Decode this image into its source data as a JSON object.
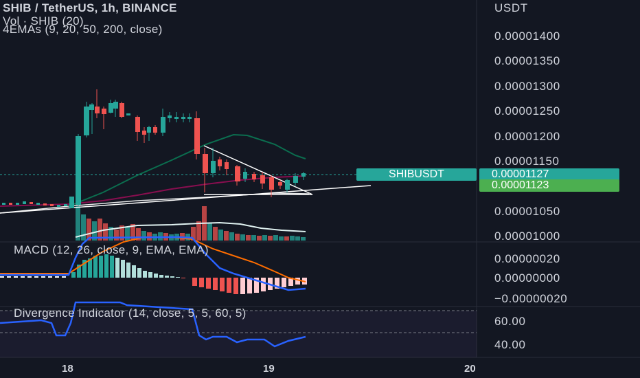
{
  "legend": {
    "title": "SHIB / TetherUS, 1h, BINANCE",
    "volume": "Vol · SHIB (20)",
    "emas": "4EMAs (9, 20, 50, 200, close)"
  },
  "price_axis": {
    "currency": "USDT",
    "labels": [
      "0.00001400",
      "0.00001350",
      "0.00001300",
      "0.00001250",
      "0.00001200",
      "0.00001150",
      "0.00001050",
      "0.00001000"
    ]
  },
  "price_tags": {
    "symbol": "SHIBUSDT",
    "last_price": "0.00001127",
    "second_price": "0.00001123"
  },
  "macd": {
    "legend": "MACD (12, 26, close, 9, EMA, EMA)",
    "axis_labels": [
      "0.00000020",
      "0.00000000",
      "−0.00000020"
    ]
  },
  "divergence": {
    "legend": "Divergence Indicator (14, close, 5, 5, 60, 5)",
    "axis_labels": [
      "60.00",
      "40.00"
    ]
  },
  "time_axis": {
    "labels": [
      "18",
      "19",
      "20"
    ]
  },
  "colors": {
    "background": "#131722",
    "up": "#26a69a",
    "down": "#ef5350",
    "macd_line": "#2962ff",
    "signal_line": "#ff6d00",
    "tag_green": "#4caf50"
  }
}
